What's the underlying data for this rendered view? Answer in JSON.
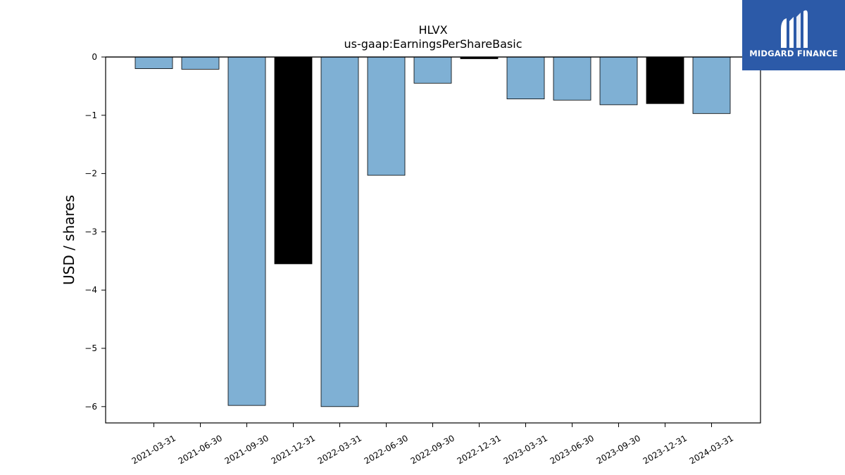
{
  "brand": {
    "name": "MIDGARD FINANCE",
    "background": "#2c5aa8"
  },
  "chart_data": {
    "type": "bar",
    "title": "HLVX",
    "subtitle": "us-gaap:EarningsPerShareBasic",
    "xlabel": "",
    "ylabel": "USD / shares",
    "ylim": [
      -6.3,
      0
    ],
    "yticks": [
      0,
      -1,
      -2,
      -3,
      -4,
      -5,
      -6
    ],
    "grid": false,
    "categories": [
      "2021-03-31",
      "2021-06-30",
      "2021-09-30",
      "2021-12-31",
      "2022-03-31",
      "2022-06-30",
      "2022-09-30",
      "2022-12-31",
      "2023-03-31",
      "2023-06-30",
      "2023-09-30",
      "2023-12-31",
      "2024-03-31"
    ],
    "values": [
      -0.2,
      -0.21,
      -5.98,
      -3.55,
      -6.0,
      -2.03,
      -0.45,
      -0.03,
      -0.72,
      -0.74,
      -0.82,
      -0.8,
      -0.97
    ],
    "colors": [
      "#7fb0d4",
      "#7fb0d4",
      "#7fb0d4",
      "#000000",
      "#7fb0d4",
      "#7fb0d4",
      "#7fb0d4",
      "#000000",
      "#7fb0d4",
      "#7fb0d4",
      "#7fb0d4",
      "#000000",
      "#7fb0d4"
    ]
  }
}
